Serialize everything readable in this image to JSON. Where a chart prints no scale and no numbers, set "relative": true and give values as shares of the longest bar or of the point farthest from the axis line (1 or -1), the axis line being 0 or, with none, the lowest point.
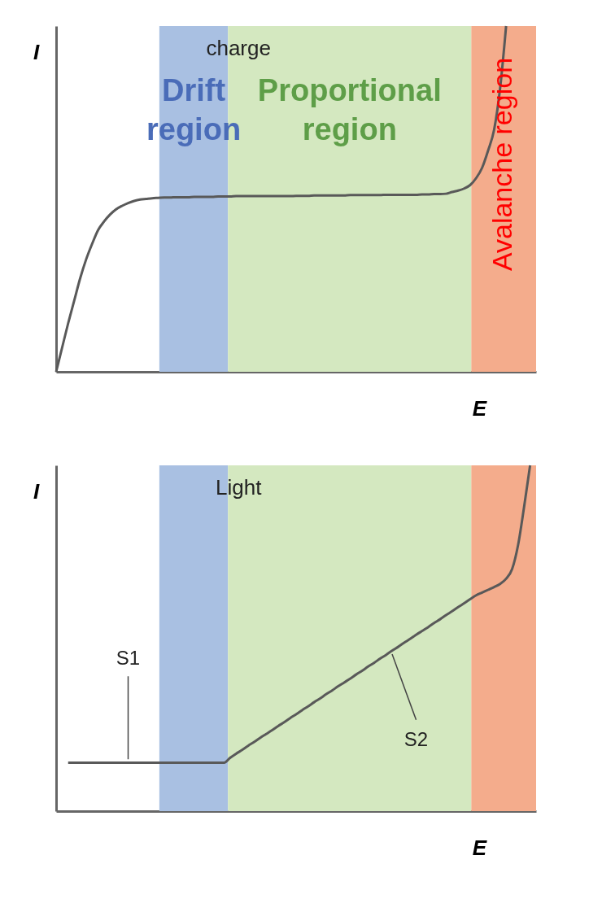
{
  "chart_data": [
    {
      "type": "line",
      "relative": true,
      "title": "charge",
      "xlabel": "E",
      "ylabel": "I",
      "grid": false,
      "tick_labels": false,
      "categories": [
        null,
        null,
        null,
        null,
        null,
        null,
        null,
        null,
        null,
        null,
        null,
        null,
        null,
        null,
        null,
        null,
        null,
        null,
        null,
        null,
        null,
        null,
        null,
        null,
        null,
        null,
        null,
        null,
        null,
        null,
        null,
        null,
        null,
        null,
        null,
        null,
        null,
        null,
        null,
        null,
        null,
        null,
        null,
        null,
        null,
        null,
        null,
        null,
        null,
        null,
        null,
        null,
        null,
        null,
        null,
        null,
        null,
        null,
        null,
        null,
        null,
        null,
        null,
        null,
        null,
        null,
        null,
        null,
        null,
        null,
        null,
        null,
        null,
        null,
        null,
        null,
        null,
        null,
        null,
        null,
        null
      ],
      "series": [
        {
          "color": "#595959",
          "values": [
            0,
            0.07,
            0.14,
            0.205,
            0.27,
            0.325,
            0.37,
            0.41,
            0.435,
            0.455,
            0.47,
            0.48,
            0.488,
            0.494,
            0.498,
            0.5,
            0.502,
            0.503,
            0.504,
            0.504,
            0.505,
            0.505,
            0.505,
            0.506,
            0.506,
            0.506,
            0.506,
            0.507,
            0.507,
            0.507,
            0.508,
            0.508,
            0.508,
            0.508,
            0.508,
            0.508,
            0.508,
            0.508,
            0.508,
            0.508,
            0.509,
            0.509,
            0.509,
            0.51,
            0.51,
            0.51,
            0.51,
            0.51,
            0.51,
            0.511,
            0.511,
            0.511,
            0.511,
            0.511,
            0.511,
            0.512,
            0.512,
            0.512,
            0.512,
            0.512,
            0.512,
            0.513,
            0.513,
            0.514,
            0.514,
            0.515,
            0.52,
            0.524,
            0.53,
            0.54,
            0.56,
            0.59,
            0.64,
            0.7,
            0.82,
            1,
            null,
            null,
            null,
            null,
            null
          ]
        }
      ],
      "annotations": [
        "Drift region",
        "Proportional region",
        "Avalanche region"
      ]
    },
    {
      "type": "line",
      "relative": true,
      "title": "Light",
      "xlabel": "E",
      "ylabel": "I",
      "grid": false,
      "tick_labels": false,
      "categories": [
        null,
        null,
        null,
        null,
        null,
        null,
        null,
        null,
        null,
        null,
        null,
        null,
        null,
        null,
        null,
        null,
        null,
        null,
        null,
        null,
        null,
        null,
        null,
        null,
        null,
        null,
        null,
        null,
        null,
        null,
        null,
        null,
        null,
        null,
        null,
        null,
        null,
        null,
        null,
        null,
        null,
        null,
        null,
        null,
        null,
        null,
        null,
        null,
        null,
        null,
        null,
        null,
        null,
        null,
        null,
        null,
        null,
        null,
        null,
        null,
        null,
        null,
        null,
        null,
        null,
        null,
        null,
        null,
        null,
        null,
        null,
        null,
        null,
        null,
        null,
        null,
        null,
        null,
        null,
        null,
        null
      ],
      "series": [
        {
          "color": "#595959",
          "values": [
            null,
            null,
            0.14,
            0.14,
            0.14,
            0.14,
            0.14,
            0.14,
            0.14,
            0.14,
            0.14,
            0.14,
            0.14,
            0.14,
            0.14,
            0.14,
            0.14,
            0.14,
            0.14,
            0.14,
            0.14,
            0.14,
            0.14,
            0.14,
            0.14,
            0.14,
            0.14,
            0.14,
            0.14,
            0.154,
            0.166,
            0.177,
            0.189,
            0.2,
            0.212,
            0.223,
            0.234,
            0.246,
            0.257,
            0.269,
            0.28,
            0.292,
            0.303,
            0.315,
            0.326,
            0.338,
            0.349,
            0.361,
            0.372,
            0.383,
            0.395,
            0.406,
            0.418,
            0.429,
            0.441,
            0.452,
            0.464,
            0.475,
            0.487,
            0.498,
            0.51,
            0.521,
            0.532,
            0.544,
            0.555,
            0.567,
            0.578,
            0.59,
            0.601,
            0.613,
            0.624,
            0.632,
            0.64,
            0.648,
            0.657,
            0.672,
            0.7,
            0.77,
            0.88,
            1,
            null
          ]
        }
      ],
      "annotations": [
        "S1",
        "S2"
      ]
    }
  ]
}
